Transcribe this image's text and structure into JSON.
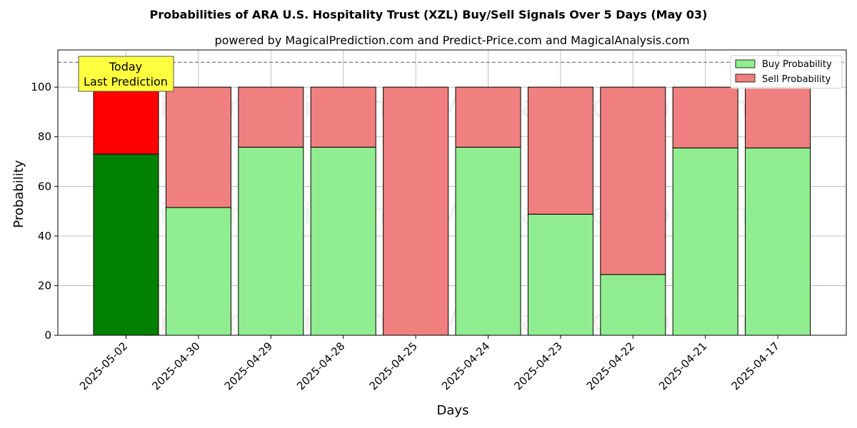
{
  "chart_data": {
    "type": "bar",
    "stacked": true,
    "title": "Probabilities of ARA U.S. Hospitality Trust (XZL) Buy/Sell Signals Over 5 Days (May 03)",
    "subtitle": "powered by MagicalPrediction.com and Predict-Price.com and MagicalAnalysis.com",
    "xlabel": "Days",
    "ylabel": "Probability",
    "ylim": [
      0,
      115
    ],
    "yticks": [
      0,
      20,
      40,
      60,
      80,
      100
    ],
    "categories": [
      "2025-05-02",
      "2025-04-30",
      "2025-04-29",
      "2025-04-28",
      "2025-04-25",
      "2025-04-24",
      "2025-04-23",
      "2025-04-22",
      "2025-04-21",
      "2025-04-17"
    ],
    "series": [
      {
        "name": "Buy Probability",
        "color": "#90ee90",
        "highlight_color": "#008000",
        "values": [
          73,
          51.5,
          75.8,
          75.8,
          0,
          75.8,
          48.8,
          24.5,
          75.5,
          75.5
        ]
      },
      {
        "name": "Sell Probability",
        "color": "#f08080",
        "highlight_color": "#ff0000",
        "values": [
          27,
          48.5,
          24.2,
          24.2,
          100,
          24.2,
          51.2,
          75.5,
          24.5,
          24.5
        ]
      }
    ],
    "highlight_index": 0,
    "reference_line": 110,
    "grid": true,
    "legend_position": "top-right",
    "annotation": {
      "line1": "Today",
      "line2": "Last Prediction",
      "color": "#ffff40"
    },
    "watermarks": [
      "MagicalAnalysis.com",
      "MagicalPrediction.com"
    ]
  }
}
